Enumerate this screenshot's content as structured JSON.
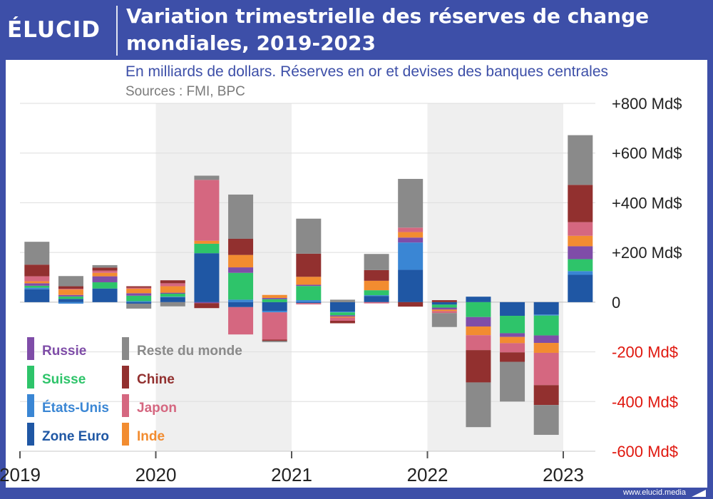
{
  "header": {
    "brand": "ÉLUCID",
    "title": "Variation trimestrielle des réserves de change mondiales, 2019-2023"
  },
  "subtitle": "En milliards de dollars. Réserves en or et devises des banques centrales",
  "sources": "Sources : FMI, BPC",
  "footer": {
    "credit": "www.elucid.media"
  },
  "colors": {
    "brand_blue": "#3d4fa8",
    "positive_label": "#222222",
    "negative_label": "#e0180f"
  },
  "chart_data": {
    "type": "bar",
    "stacked": true,
    "x_axis_labels": [
      "2019",
      "2020",
      "2021",
      "2022",
      "2023"
    ],
    "y_ticks": [
      {
        "value": 800,
        "label": "+800 Md$"
      },
      {
        "value": 600,
        "label": "+600 Md$"
      },
      {
        "value": 400,
        "label": "+400 Md$"
      },
      {
        "value": 200,
        "label": "+200 Md$"
      },
      {
        "value": 0,
        "label": "0"
      },
      {
        "value": -200,
        "label": "-200 Md$"
      },
      {
        "value": -400,
        "label": "-400 Md$"
      },
      {
        "value": -600,
        "label": "-600 Md$"
      }
    ],
    "ylim": [
      -600,
      800
    ],
    "grid": true,
    "legend_position": "bottom-left",
    "shaded_years": [
      "2020",
      "2022"
    ],
    "categories": [
      "2019 T1",
      "2019 T2",
      "2019 T3",
      "2019 T4",
      "2020 T1",
      "2020 T2",
      "2020 T3",
      "2020 T4",
      "2021 T1",
      "2021 T2",
      "2021 T3",
      "2021 T4",
      "2022 T1",
      "2022 T2",
      "2022 T3",
      "2022 T4",
      "2023 T1"
    ],
    "series": [
      {
        "name": "Zone Euro",
        "color": "#1f57a4",
        "values": [
          52,
          13,
          55,
          -6,
          20,
          197,
          -20,
          -35,
          -4,
          -38,
          25,
          130,
          -10,
          22,
          -55,
          -50,
          110
        ]
      },
      {
        "name": "États-Unis",
        "color": "#3a86d4",
        "values": [
          6,
          -6,
          0,
          4,
          2,
          0,
          10,
          -6,
          8,
          -3,
          3,
          110,
          0,
          0,
          0,
          -4,
          15
        ]
      },
      {
        "name": "Suisse",
        "color": "#2ec46a",
        "values": [
          8,
          10,
          25,
          22,
          12,
          38,
          108,
          12,
          57,
          -12,
          20,
          0,
          -12,
          -60,
          -70,
          -80,
          48
        ]
      },
      {
        "name": "Russie",
        "color": "#7f4da8",
        "values": [
          10,
          6,
          24,
          10,
          4,
          -4,
          22,
          5,
          5,
          -5,
          0,
          20,
          -8,
          -38,
          -15,
          -30,
          52
        ]
      },
      {
        "name": "Inde",
        "color": "#f28c30",
        "values": [
          8,
          22,
          14,
          18,
          26,
          12,
          50,
          12,
          32,
          -4,
          38,
          22,
          -6,
          -35,
          -25,
          -40,
          42
        ]
      },
      {
        "name": "Japon",
        "color": "#d56780",
        "values": [
          20,
          3,
          9,
          4,
          12,
          245,
          -110,
          -110,
          -5,
          -13,
          -5,
          18,
          -8,
          -60,
          -37,
          -130,
          55
        ]
      },
      {
        "name": "Chine",
        "color": "#92302f",
        "values": [
          47,
          10,
          12,
          6,
          12,
          -20,
          65,
          -5,
          93,
          -10,
          43,
          -18,
          8,
          -130,
          -38,
          -80,
          150
        ]
      },
      {
        "name": "Reste du monde",
        "color": "#8a8a8a",
        "values": [
          92,
          41,
          10,
          -20,
          -17,
          17,
          178,
          -5,
          141,
          10,
          65,
          196,
          -56,
          -180,
          -160,
          -120,
          200
        ]
      }
    ]
  },
  "legend": {
    "items": [
      {
        "name": "Russie",
        "color": "#7f4da8"
      },
      {
        "name": "Suisse",
        "color": "#2ec46a"
      },
      {
        "name": "États-Unis",
        "color": "#3a86d4"
      },
      {
        "name": "Zone Euro",
        "color": "#1f57a4"
      },
      {
        "name": "Reste du monde",
        "color": "#8a8a8a"
      },
      {
        "name": "Chine",
        "color": "#92302f"
      },
      {
        "name": "Japon",
        "color": "#d56780"
      },
      {
        "name": "Inde",
        "color": "#f28c30"
      }
    ]
  }
}
